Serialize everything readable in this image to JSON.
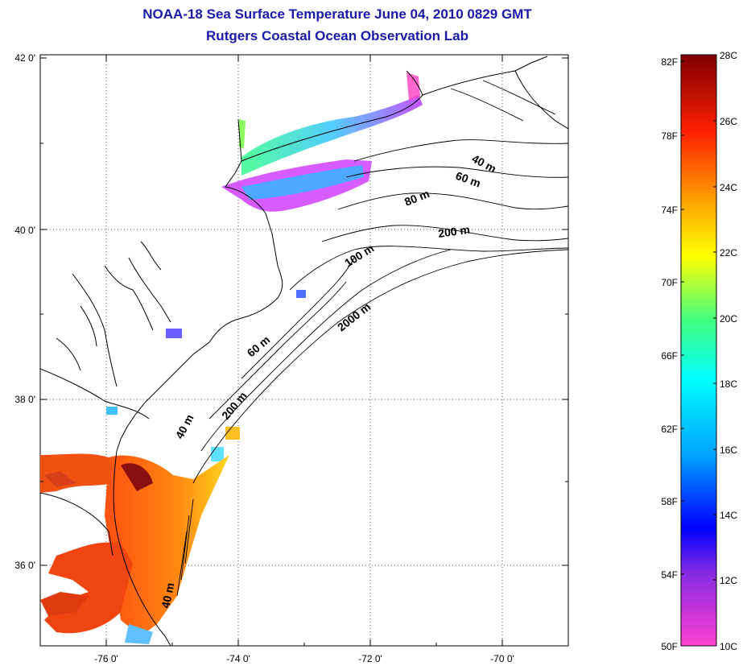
{
  "title": "NOAA-18 Sea Surface Temperature June 04, 2010 0829 GMT",
  "subtitle": "Rutgers Coastal Ocean Observation Lab",
  "map": {
    "lat_labels": [
      "42 0'",
      "40 0'",
      "38 0'",
      "36 0'"
    ],
    "lon_labels": [
      "-76 0'",
      "-74 0'",
      "-72 0'",
      "-70 0'"
    ],
    "contour_labels": [
      "40 m",
      "60 m",
      "80 m",
      "200 m",
      "100 m",
      "2000 m",
      "60 m",
      "200 m",
      "40 m",
      "40 m"
    ],
    "grid": "dotted"
  },
  "colorbar": {
    "f_labels": [
      "82F",
      "78F",
      "74F",
      "70F",
      "66F",
      "62F",
      "58F",
      "54F",
      "50F"
    ],
    "c_labels": [
      "28C",
      "26C",
      "24C",
      "22C",
      "20C",
      "18C",
      "16C",
      "14C",
      "12C",
      "10C"
    ]
  }
}
